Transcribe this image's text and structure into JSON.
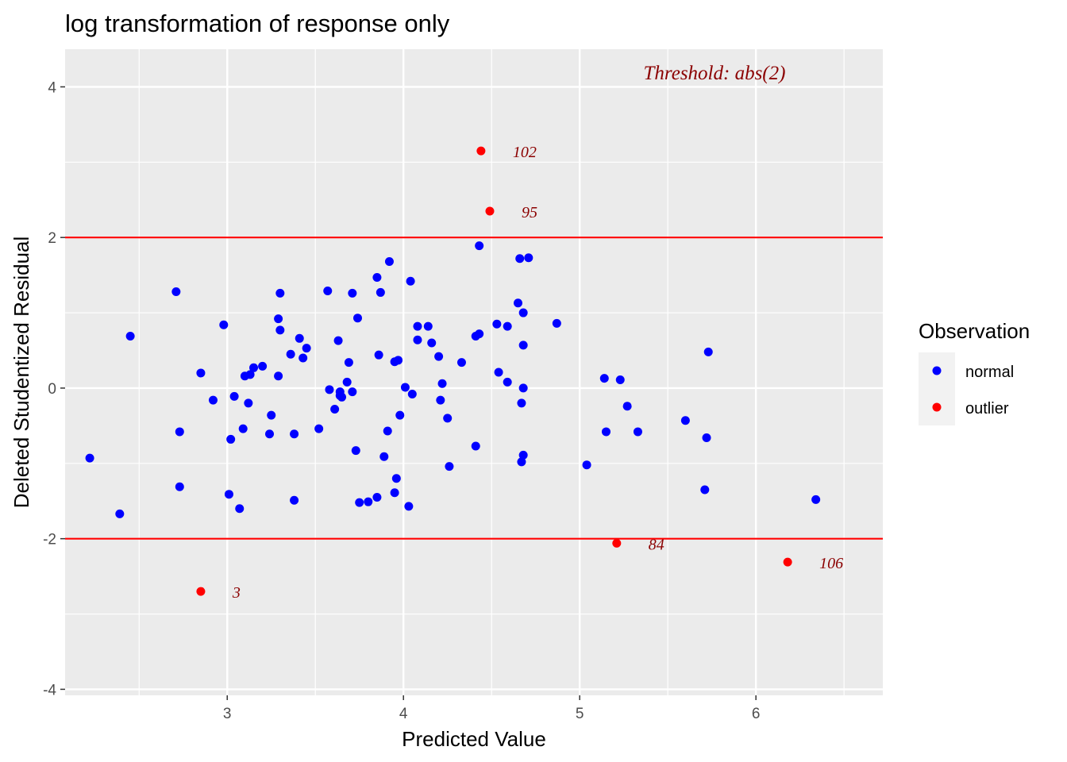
{
  "chart_data": {
    "type": "scatter",
    "title": "log transformation of response only",
    "xlabel": "Predicted Value",
    "ylabel": "Deleted Studentized Residual",
    "xlim": [
      2.08,
      6.72
    ],
    "ylim": [
      -4.08,
      4.5
    ],
    "x_ticks": [
      3,
      4,
      5,
      6
    ],
    "x_tick_labels": [
      "3",
      "4",
      "5",
      "6"
    ],
    "y_ticks": [
      -4,
      -2,
      0,
      2,
      4
    ],
    "y_tick_labels": [
      "-4",
      "-2",
      "0",
      "2",
      "4"
    ],
    "grid": true,
    "threshold_lines": [
      2,
      -2
    ],
    "threshold_color": "#ff0000",
    "annotation": "Threshold: abs(2)",
    "legend": {
      "title": "Observation",
      "position": "right",
      "entries": [
        {
          "label": "normal",
          "color": "#0000ff"
        },
        {
          "label": "outlier",
          "color": "#ff0000"
        }
      ]
    },
    "series": [
      {
        "name": "normal",
        "color": "#0000ff",
        "points": [
          [
            2.22,
            -0.93
          ],
          [
            2.39,
            -1.67
          ],
          [
            2.45,
            0.69
          ],
          [
            2.71,
            1.28
          ],
          [
            2.73,
            -0.58
          ],
          [
            2.73,
            -1.31
          ],
          [
            2.85,
            0.2
          ],
          [
            2.92,
            -0.16
          ],
          [
            2.98,
            0.84
          ],
          [
            3.01,
            -1.41
          ],
          [
            3.02,
            -0.68
          ],
          [
            3.04,
            -0.11
          ],
          [
            3.07,
            -1.6
          ],
          [
            3.09,
            -0.54
          ],
          [
            3.1,
            0.16
          ],
          [
            3.12,
            -0.2
          ],
          [
            3.13,
            0.18
          ],
          [
            3.15,
            0.27
          ],
          [
            3.2,
            0.29
          ],
          [
            3.24,
            -0.61
          ],
          [
            3.25,
            -0.36
          ],
          [
            3.29,
            0.16
          ],
          [
            3.29,
            0.92
          ],
          [
            3.3,
            0.77
          ],
          [
            3.3,
            1.26
          ],
          [
            3.36,
            0.45
          ],
          [
            3.38,
            -0.61
          ],
          [
            3.38,
            -1.49
          ],
          [
            3.41,
            0.66
          ],
          [
            3.43,
            0.4
          ],
          [
            3.45,
            0.53
          ],
          [
            3.52,
            -0.54
          ],
          [
            3.57,
            1.29
          ],
          [
            3.58,
            -0.02
          ],
          [
            3.61,
            -0.28
          ],
          [
            3.63,
            0.63
          ],
          [
            3.64,
            -0.05
          ],
          [
            3.64,
            -0.1
          ],
          [
            3.65,
            -0.12
          ],
          [
            3.68,
            0.08
          ],
          [
            3.69,
            0.34
          ],
          [
            3.71,
            1.26
          ],
          [
            3.71,
            -0.05
          ],
          [
            3.73,
            -0.83
          ],
          [
            3.74,
            0.93
          ],
          [
            3.75,
            -1.52
          ],
          [
            3.8,
            -1.51
          ],
          [
            3.85,
            1.47
          ],
          [
            3.85,
            -1.45
          ],
          [
            3.86,
            0.44
          ],
          [
            3.87,
            1.27
          ],
          [
            3.89,
            -0.91
          ],
          [
            3.91,
            -0.57
          ],
          [
            3.92,
            1.68
          ],
          [
            3.95,
            -1.39
          ],
          [
            3.95,
            0.35
          ],
          [
            3.96,
            -1.2
          ],
          [
            3.97,
            0.37
          ],
          [
            3.98,
            -0.36
          ],
          [
            4.01,
            0.01
          ],
          [
            4.03,
            -1.57
          ],
          [
            4.04,
            1.42
          ],
          [
            4.05,
            -0.08
          ],
          [
            4.08,
            0.82
          ],
          [
            4.08,
            0.64
          ],
          [
            4.14,
            0.82
          ],
          [
            4.16,
            0.6
          ],
          [
            4.2,
            0.42
          ],
          [
            4.21,
            -0.16
          ],
          [
            4.22,
            0.06
          ],
          [
            4.25,
            -0.4
          ],
          [
            4.26,
            -1.04
          ],
          [
            4.33,
            0.34
          ],
          [
            4.41,
            -0.77
          ],
          [
            4.41,
            0.69
          ],
          [
            4.43,
            0.72
          ],
          [
            4.43,
            1.89
          ],
          [
            4.53,
            0.85
          ],
          [
            4.54,
            0.21
          ],
          [
            4.59,
            0.08
          ],
          [
            4.59,
            0.82
          ],
          [
            4.65,
            1.13
          ],
          [
            4.66,
            1.72
          ],
          [
            4.67,
            -0.2
          ],
          [
            4.67,
            -0.98
          ],
          [
            4.68,
            0.57
          ],
          [
            4.68,
            1.0
          ],
          [
            4.68,
            0.0
          ],
          [
            4.68,
            -0.89
          ],
          [
            4.71,
            1.73
          ],
          [
            4.87,
            0.86
          ],
          [
            5.04,
            -1.02
          ],
          [
            5.14,
            0.13
          ],
          [
            5.15,
            -0.58
          ],
          [
            5.23,
            0.11
          ],
          [
            5.27,
            -0.24
          ],
          [
            5.33,
            -0.58
          ],
          [
            5.6,
            -0.43
          ],
          [
            5.71,
            -1.35
          ],
          [
            5.72,
            -0.66
          ],
          [
            5.73,
            0.48
          ],
          [
            6.34,
            -1.48
          ]
        ]
      },
      {
        "name": "outlier",
        "color": "#ff0000",
        "points": [
          [
            4.44,
            3.15,
            "102"
          ],
          [
            4.49,
            2.35,
            "95"
          ],
          [
            2.85,
            -2.7,
            "3"
          ],
          [
            5.21,
            -2.06,
            "84"
          ],
          [
            6.18,
            -2.31,
            "106"
          ]
        ]
      }
    ]
  }
}
